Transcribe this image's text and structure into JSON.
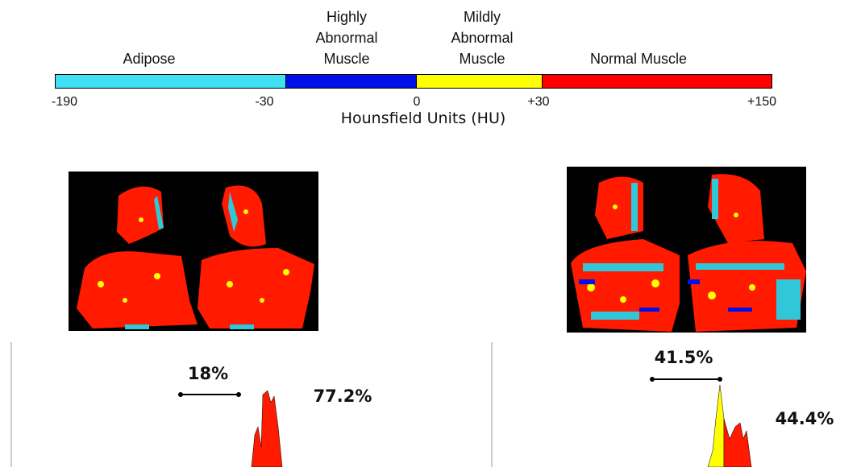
{
  "colorbar": {
    "segments": [
      {
        "label_lines": [
          "Adipose"
        ],
        "color": "#40e0f4"
      },
      {
        "label_lines": [
          "Highly",
          "Abnormal",
          "Muscle"
        ],
        "color": "#0010e8"
      },
      {
        "label_lines": [
          "Mildly",
          "Abnormal",
          "Muscle"
        ],
        "color": "#ffff00"
      },
      {
        "label_lines": [
          "Normal Muscle"
        ],
        "color": "#ff0000"
      }
    ],
    "ticks": [
      "-190",
      "-30",
      "0",
      "+30",
      "+150"
    ],
    "axis_label": "Hounsfield Units (HU)"
  },
  "panels": [
    {
      "bracket_label": "18%",
      "peak_label": "77.2%"
    },
    {
      "bracket_label": "41.5%",
      "peak_label": "44.4%"
    }
  ]
}
